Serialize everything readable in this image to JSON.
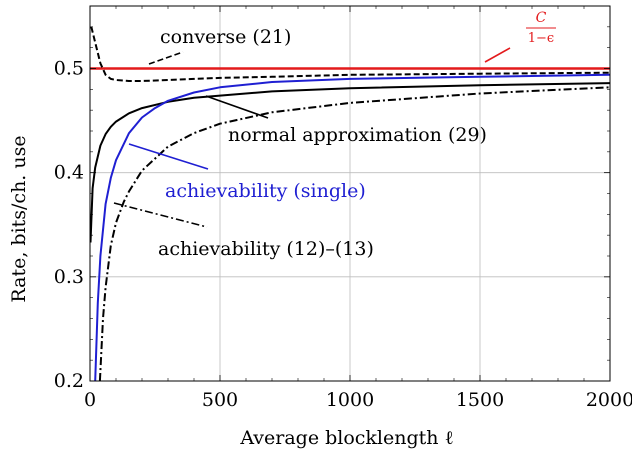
{
  "chart_data": {
    "type": "line",
    "xlabel": "Average blocklength ℓ",
    "ylabel": "Rate, bits/ch. use",
    "xlim": [
      0,
      2000
    ],
    "ylim": [
      0.2,
      0.56
    ],
    "xticks": [
      0,
      500,
      1000,
      1500,
      2000
    ],
    "xtick_labels": [
      "0",
      "500",
      "1000",
      "1500",
      "2000"
    ],
    "yticks": [
      0.2,
      0.3,
      0.4,
      0.5
    ],
    "ytick_labels": [
      "0.2",
      "0.3",
      "0.4",
      "0.5"
    ],
    "grid": true,
    "series": [
      {
        "name": "C/(1−ε)",
        "label_num": "C",
        "label_den": "1−ϵ",
        "color": "#e31a1c",
        "style": "solid",
        "x": [
          0,
          2000
        ],
        "y": [
          0.5,
          0.5
        ]
      },
      {
        "name": "converse (21)",
        "color": "#000000",
        "style": "dashed",
        "x": [
          5,
          20,
          40,
          60,
          80,
          100,
          150,
          200,
          300,
          400,
          500,
          700,
          1000,
          1500,
          2000
        ],
        "y": [
          0.54,
          0.525,
          0.505,
          0.494,
          0.49,
          0.489,
          0.488,
          0.488,
          0.489,
          0.49,
          0.491,
          0.492,
          0.494,
          0.495,
          0.496
        ]
      },
      {
        "name": "normal approximation (29)",
        "color": "#000000",
        "style": "solid",
        "x": [
          2,
          10,
          20,
          40,
          60,
          80,
          100,
          150,
          200,
          300,
          400,
          500,
          700,
          1000,
          1500,
          2000
        ],
        "y": [
          0.333,
          0.385,
          0.405,
          0.426,
          0.437,
          0.444,
          0.449,
          0.457,
          0.462,
          0.468,
          0.472,
          0.474,
          0.478,
          0.481,
          0.484,
          0.486
        ]
      },
      {
        "name": "achievability (single)",
        "color": "#1f1fd2",
        "style": "solid",
        "x": [
          20,
          30,
          40,
          60,
          80,
          100,
          150,
          200,
          250,
          300,
          400,
          500,
          700,
          1000,
          1500,
          2000
        ],
        "y": [
          0.2,
          0.275,
          0.32,
          0.37,
          0.395,
          0.412,
          0.438,
          0.453,
          0.462,
          0.469,
          0.477,
          0.482,
          0.487,
          0.49,
          0.492,
          0.494
        ]
      },
      {
        "name": "achievability (12)–(13)",
        "color": "#000000",
        "style": "dashdot",
        "x": [
          38,
          50,
          60,
          80,
          100,
          130,
          150,
          200,
          300,
          400,
          500,
          700,
          1000,
          1500,
          2000
        ],
        "y": [
          0.2,
          0.26,
          0.29,
          0.33,
          0.352,
          0.372,
          0.382,
          0.402,
          0.425,
          0.438,
          0.447,
          0.458,
          0.467,
          0.476,
          0.482
        ]
      }
    ],
    "annotations": [
      {
        "text": "converse (21)",
        "series_index": 1
      },
      {
        "text": "normal approximation (29)",
        "series_index": 2
      },
      {
        "text": "achievability (single)",
        "series_index": 3
      },
      {
        "text": "achievability (12)–(13)",
        "series_index": 4
      }
    ]
  }
}
